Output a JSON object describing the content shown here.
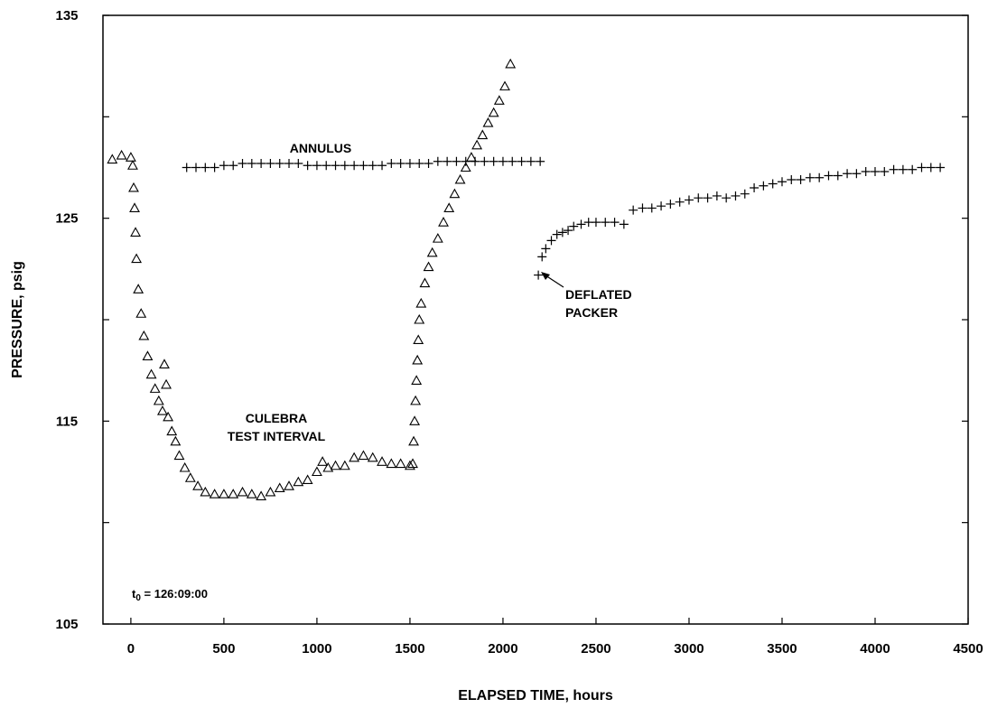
{
  "chart_data": {
    "type": "scatter",
    "xlabel": "ELAPSED TIME, hours",
    "ylabel": "PRESSURE, psig",
    "xlim": [
      -150,
      4500
    ],
    "ylim": [
      105,
      135
    ],
    "x_ticks": [
      0,
      500,
      1000,
      1500,
      2000,
      2500,
      3000,
      3500,
      4000,
      4500
    ],
    "x_tick_labels": [
      "0",
      "500",
      "1000",
      "1500",
      "2000",
      "2500",
      "3000",
      "3500",
      "4000",
      "4500"
    ],
    "y_ticks": [
      105,
      110,
      115,
      120,
      125,
      130,
      135
    ],
    "y_tick_labels": [
      "105",
      "",
      "115",
      "",
      "125",
      "",
      "135"
    ],
    "grid": false,
    "annotations": {
      "annulus": "ANNULUS",
      "culebra_line1": "CULEBRA",
      "culebra_line2": "TEST INTERVAL",
      "deflated_line1": "DEFLATED",
      "deflated_line2": "PACKER",
      "t0_prefix": "t",
      "t0_sub": "0",
      "t0_value": " = 126:09:00"
    },
    "series": [
      {
        "marker": "triangle",
        "points": [
          [
            -100,
            127.9
          ],
          [
            -50,
            128.1
          ],
          [
            0,
            128.0
          ],
          [
            10,
            127.6
          ],
          [
            15,
            126.5
          ],
          [
            20,
            125.5
          ],
          [
            25,
            124.3
          ],
          [
            30,
            123.0
          ],
          [
            40,
            121.5
          ],
          [
            55,
            120.3
          ],
          [
            70,
            119.2
          ],
          [
            90,
            118.2
          ],
          [
            110,
            117.3
          ],
          [
            130,
            116.6
          ],
          [
            150,
            116.0
          ],
          [
            170,
            115.5
          ],
          [
            180,
            117.8
          ],
          [
            190,
            116.8
          ],
          [
            200,
            115.2
          ],
          [
            220,
            114.5
          ],
          [
            240,
            114.0
          ],
          [
            260,
            113.3
          ],
          [
            290,
            112.7
          ],
          [
            320,
            112.2
          ],
          [
            360,
            111.8
          ],
          [
            400,
            111.5
          ],
          [
            450,
            111.4
          ],
          [
            500,
            111.4
          ],
          [
            550,
            111.4
          ],
          [
            600,
            111.5
          ],
          [
            650,
            111.4
          ],
          [
            700,
            111.3
          ],
          [
            750,
            111.5
          ],
          [
            800,
            111.7
          ],
          [
            850,
            111.8
          ],
          [
            900,
            112.0
          ],
          [
            950,
            112.1
          ],
          [
            1000,
            112.5
          ],
          [
            1030,
            113.0
          ],
          [
            1060,
            112.7
          ],
          [
            1100,
            112.8
          ],
          [
            1150,
            112.8
          ],
          [
            1200,
            113.2
          ],
          [
            1250,
            113.3
          ],
          [
            1300,
            113.2
          ],
          [
            1350,
            113.0
          ],
          [
            1400,
            112.9
          ],
          [
            1450,
            112.9
          ],
          [
            1500,
            112.8
          ],
          [
            1515,
            112.9
          ],
          [
            1520,
            114.0
          ],
          [
            1525,
            115.0
          ],
          [
            1530,
            116.0
          ],
          [
            1535,
            117.0
          ],
          [
            1540,
            118.0
          ],
          [
            1545,
            119.0
          ],
          [
            1550,
            120.0
          ],
          [
            1560,
            120.8
          ],
          [
            1580,
            121.8
          ],
          [
            1600,
            122.6
          ],
          [
            1620,
            123.3
          ],
          [
            1650,
            124.0
          ],
          [
            1680,
            124.8
          ],
          [
            1710,
            125.5
          ],
          [
            1740,
            126.2
          ],
          [
            1770,
            126.9
          ],
          [
            1800,
            127.5
          ],
          [
            1830,
            128.0
          ],
          [
            1860,
            128.6
          ],
          [
            1890,
            129.1
          ],
          [
            1920,
            129.7
          ],
          [
            1950,
            130.2
          ],
          [
            1980,
            130.8
          ],
          [
            2010,
            131.5
          ],
          [
            2040,
            132.6
          ]
        ]
      },
      {
        "marker": "plus",
        "points": [
          [
            300,
            127.5
          ],
          [
            350,
            127.5
          ],
          [
            400,
            127.5
          ],
          [
            450,
            127.5
          ],
          [
            500,
            127.6
          ],
          [
            550,
            127.6
          ],
          [
            600,
            127.7
          ],
          [
            650,
            127.7
          ],
          [
            700,
            127.7
          ],
          [
            750,
            127.7
          ],
          [
            800,
            127.7
          ],
          [
            850,
            127.7
          ],
          [
            900,
            127.7
          ],
          [
            950,
            127.6
          ],
          [
            1000,
            127.6
          ],
          [
            1050,
            127.6
          ],
          [
            1100,
            127.6
          ],
          [
            1150,
            127.6
          ],
          [
            1200,
            127.6
          ],
          [
            1250,
            127.6
          ],
          [
            1300,
            127.6
          ],
          [
            1350,
            127.6
          ],
          [
            1400,
            127.7
          ],
          [
            1450,
            127.7
          ],
          [
            1500,
            127.7
          ],
          [
            1550,
            127.7
          ],
          [
            1600,
            127.7
          ],
          [
            1650,
            127.8
          ],
          [
            1700,
            127.8
          ],
          [
            1750,
            127.8
          ],
          [
            1800,
            127.8
          ],
          [
            1850,
            127.8
          ],
          [
            1900,
            127.8
          ],
          [
            1950,
            127.8
          ],
          [
            2000,
            127.8
          ],
          [
            2050,
            127.8
          ],
          [
            2100,
            127.8
          ],
          [
            2150,
            127.8
          ],
          [
            2200,
            127.8
          ]
        ]
      },
      {
        "marker": "plus",
        "points": [
          [
            2190,
            122.2
          ],
          [
            2210,
            123.1
          ],
          [
            2230,
            123.5
          ],
          [
            2260,
            123.9
          ],
          [
            2290,
            124.2
          ],
          [
            2320,
            124.3
          ],
          [
            2350,
            124.4
          ],
          [
            2380,
            124.6
          ],
          [
            2420,
            124.7
          ],
          [
            2460,
            124.8
          ],
          [
            2500,
            124.8
          ],
          [
            2550,
            124.8
          ],
          [
            2600,
            124.8
          ],
          [
            2650,
            124.7
          ],
          [
            2700,
            125.4
          ],
          [
            2750,
            125.5
          ],
          [
            2800,
            125.5
          ],
          [
            2850,
            125.6
          ],
          [
            2900,
            125.7
          ],
          [
            2950,
            125.8
          ],
          [
            3000,
            125.9
          ],
          [
            3050,
            126.0
          ],
          [
            3100,
            126.0
          ],
          [
            3150,
            126.1
          ],
          [
            3200,
            126.0
          ],
          [
            3250,
            126.1
          ],
          [
            3300,
            126.2
          ],
          [
            3350,
            126.5
          ],
          [
            3400,
            126.6
          ],
          [
            3450,
            126.7
          ],
          [
            3500,
            126.8
          ],
          [
            3550,
            126.9
          ],
          [
            3600,
            126.9
          ],
          [
            3650,
            127.0
          ],
          [
            3700,
            127.0
          ],
          [
            3750,
            127.1
          ],
          [
            3800,
            127.1
          ],
          [
            3850,
            127.2
          ],
          [
            3900,
            127.2
          ],
          [
            3950,
            127.3
          ],
          [
            4000,
            127.3
          ],
          [
            4050,
            127.3
          ],
          [
            4100,
            127.4
          ],
          [
            4150,
            127.4
          ],
          [
            4200,
            127.4
          ],
          [
            4250,
            127.5
          ],
          [
            4300,
            127.5
          ],
          [
            4350,
            127.5
          ]
        ]
      }
    ]
  }
}
